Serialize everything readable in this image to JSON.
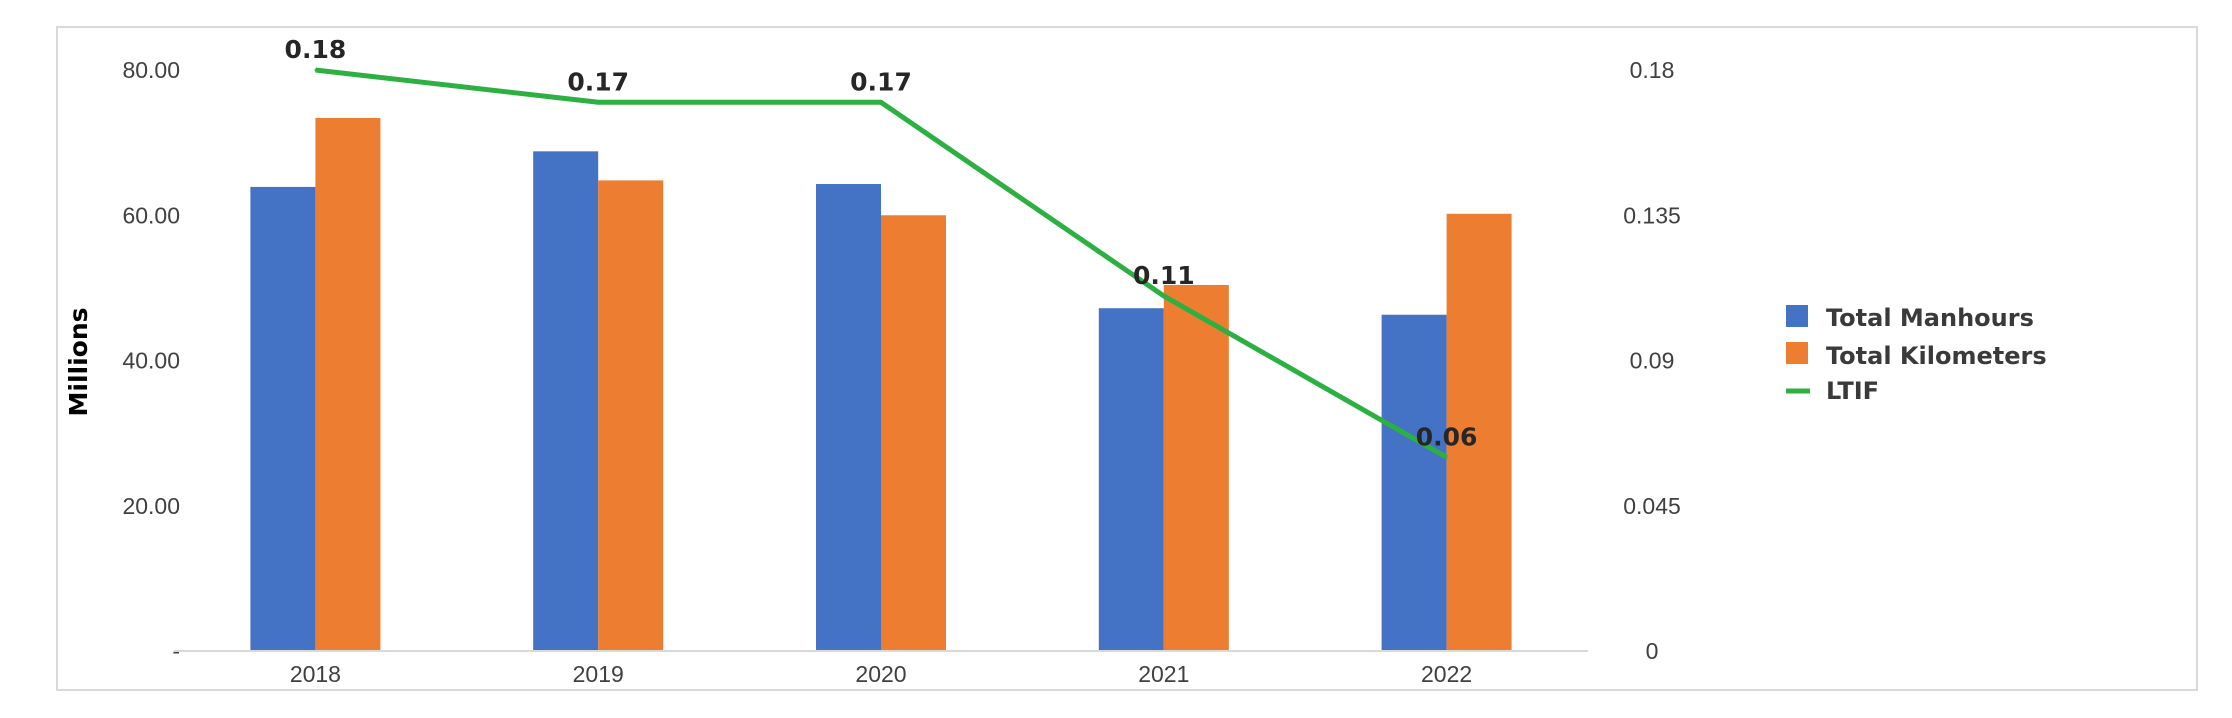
{
  "chart_data": {
    "type": "bar",
    "categories": [
      "2018",
      "2019",
      "2020",
      "2021",
      "2022"
    ],
    "series": [
      {
        "name": "Total Manhours",
        "kind": "bar",
        "axis": "left",
        "color": "#4472C4",
        "values": [
          63.9,
          68.8,
          64.3,
          47.2,
          46.3
        ]
      },
      {
        "name": "Total Kilometers",
        "kind": "bar",
        "axis": "left",
        "color": "#ED7D31",
        "values": [
          73.4,
          64.8,
          60.0,
          50.4,
          60.2
        ]
      },
      {
        "name": "LTIF",
        "kind": "line",
        "axis": "right",
        "color": "#2DB042",
        "values": [
          0.18,
          0.17,
          0.17,
          0.11,
          0.06
        ],
        "labels": [
          "0.18",
          "0.17",
          "0.17",
          "0.11",
          "0.06"
        ]
      }
    ],
    "ylabel": "Millions",
    "ylim": [
      0,
      80
    ],
    "y_ticks": [
      "-",
      "20.00",
      "40.00",
      "60.00",
      "80.00"
    ],
    "y2lim": [
      0,
      0.18
    ],
    "y2_ticks": [
      "0",
      "0.045",
      "0.09",
      "0.135",
      "0.18"
    ],
    "grid": false,
    "legend_position": "right"
  }
}
